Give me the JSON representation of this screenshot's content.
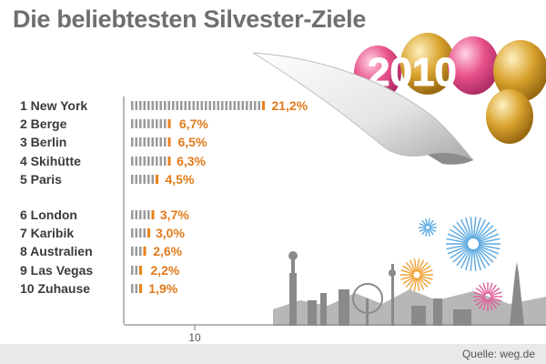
{
  "chart_data": {
    "type": "bar",
    "title": "Die beliebtesten Silvester-Ziele",
    "categories": [
      "1 New York",
      "2 Berge",
      "3 Berlin",
      "4 Skihütte",
      "5 Paris",
      "6 London",
      "7 Karibik",
      "8 Australien",
      "9 Las Vegas",
      "10 Zuhause"
    ],
    "values": [
      21.2,
      6.7,
      6.5,
      6.3,
      4.5,
      3.7,
      3.0,
      2.6,
      2.2,
      1.9
    ],
    "value_labels": [
      "21,2%",
      "6,7%",
      "6,5%",
      "6,3%",
      "4,5%",
      "3,7%",
      "3,0%",
      "2,6%",
      "2,2%",
      "1,9%"
    ],
    "x_ticks": [
      "10"
    ],
    "xlim": [
      0,
      21.2
    ],
    "grid": false,
    "colors": {
      "bar_gray": "#9a9a9a",
      "bar_accent": "#e8821e",
      "value_label": "#e07a1a",
      "category_label": "#3a3a3a",
      "title": "#6f6f6f"
    }
  },
  "illustration": {
    "balloon_text": "2010",
    "colors": {
      "balloon_pink": "#e8508a",
      "balloon_gold": "#d9a32e",
      "skyline": "#8a8a8a",
      "firework_blue": "#5aa8e0",
      "firework_orange": "#f0a030",
      "firework_pink": "#e0609a"
    }
  },
  "footer": {
    "source": "Quelle: weg.de"
  }
}
